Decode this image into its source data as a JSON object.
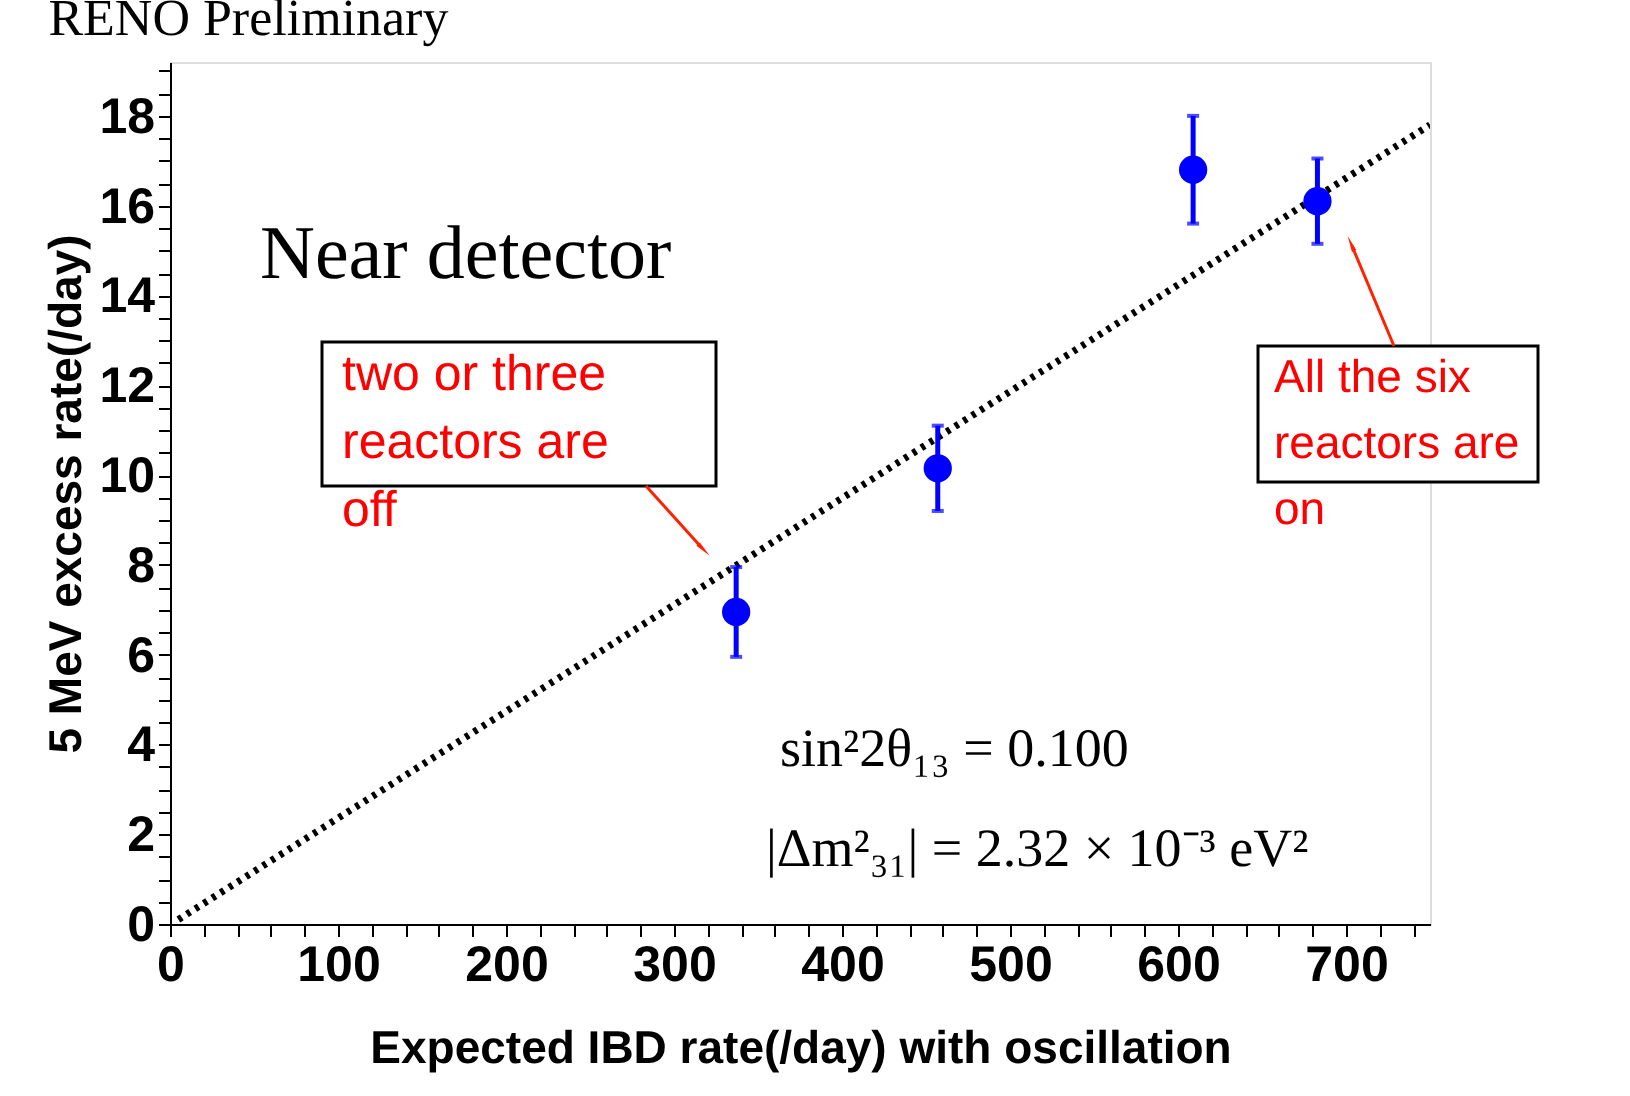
{
  "chart_data": {
    "type": "scatter",
    "title": "RENO Preliminary",
    "xlabel": "Expected IBD rate(/day) with oscillation",
    "ylabel": "5 MeV excess rate(/day)",
    "xlim": [
      0,
      750
    ],
    "ylim": [
      0,
      19.2
    ],
    "xticks": [
      0,
      {
        "value": 20,
        "label": null
      },
      {
        "value": 40,
        "label": null
      },
      {
        "value": 60,
        "label": null
      },
      {
        "value": 80,
        "label": null
      },
      100,
      {
        "value": 120,
        "label": null
      },
      {
        "value": 140,
        "label": null
      },
      {
        "value": 160,
        "label": null
      },
      {
        "value": 180,
        "label": null
      },
      200,
      {
        "value": 220,
        "label": null
      },
      {
        "value": 240,
        "label": null
      },
      {
        "value": 260,
        "label": null
      },
      {
        "value": 280,
        "label": null
      },
      300,
      {
        "value": 320,
        "label": null
      },
      {
        "value": 340,
        "label": null
      },
      {
        "value": 360,
        "label": null
      },
      {
        "value": 380,
        "label": null
      },
      400,
      {
        "value": 420,
        "label": null
      },
      {
        "value": 440,
        "label": null
      },
      {
        "value": 460,
        "label": null
      },
      {
        "value": 480,
        "label": null
      },
      500,
      {
        "value": 520,
        "label": null
      },
      {
        "value": 540,
        "label": null
      },
      {
        "value": 560,
        "label": null
      },
      {
        "value": 580,
        "label": null
      },
      600,
      {
        "value": 620,
        "label": null
      },
      {
        "value": 640,
        "label": null
      },
      {
        "value": 660,
        "label": null
      },
      {
        "value": 680,
        "label": null
      },
      700,
      {
        "value": 720,
        "label": null
      },
      {
        "value": 740,
        "label": null
      }
    ],
    "yticks": [
      0,
      {
        "value": 0.5,
        "label": null
      },
      {
        "value": 1,
        "label": null
      },
      {
        "value": 1.5,
        "label": null
      },
      2,
      {
        "value": 2.5,
        "label": null
      },
      {
        "value": 3,
        "label": null
      },
      {
        "value": 3.5,
        "label": null
      },
      4,
      {
        "value": 4.5,
        "label": null
      },
      {
        "value": 5,
        "label": null
      },
      {
        "value": 5.5,
        "label": null
      },
      6,
      {
        "value": 6.5,
        "label": null
      },
      {
        "value": 7,
        "label": null
      },
      {
        "value": 7.5,
        "label": null
      },
      8,
      {
        "value": 8.5,
        "label": null
      },
      {
        "value": 9,
        "label": null
      },
      {
        "value": 9.5,
        "label": null
      },
      10,
      {
        "value": 10.5,
        "label": null
      },
      {
        "value": 11,
        "label": null
      },
      {
        "value": 11.5,
        "label": null
      },
      12,
      {
        "value": 12.5,
        "label": null
      },
      {
        "value": 13,
        "label": null
      },
      {
        "value": 13.5,
        "label": null
      },
      14,
      {
        "value": 14.5,
        "label": null
      },
      {
        "value": 15,
        "label": null
      },
      {
        "value": 15.5,
        "label": null
      },
      16,
      {
        "value": 16.5,
        "label": null
      },
      {
        "value": 17,
        "label": null
      },
      {
        "value": 17.5,
        "label": null
      },
      18,
      {
        "value": 18.5,
        "label": null
      },
      {
        "value": 19,
        "label": null
      }
    ],
    "grid": false,
    "series": [
      {
        "type": "line",
        "color": "#000000",
        "line_style": "dotted",
        "x": [
          5,
          750
        ],
        "values": [
          0.1,
          17.8
        ]
      },
      {
        "marker": "circle",
        "color": "#0000ff",
        "x": [
          337,
          457,
          609,
          683
        ],
        "values": [
          6.95,
          10.15,
          16.8,
          16.1
        ],
        "errors": [
          1.0,
          0.95,
          1.2,
          0.95
        ]
      }
    ],
    "annotations": [
      "Near detector",
      "two or three\nreactors are\noff",
      "All the six\nreactors are\non",
      "sin²2θ₁₃ = 0.100",
      "|Δm²₃₁| = 2.32 × 10⁻³ eV²"
    ]
  }
}
